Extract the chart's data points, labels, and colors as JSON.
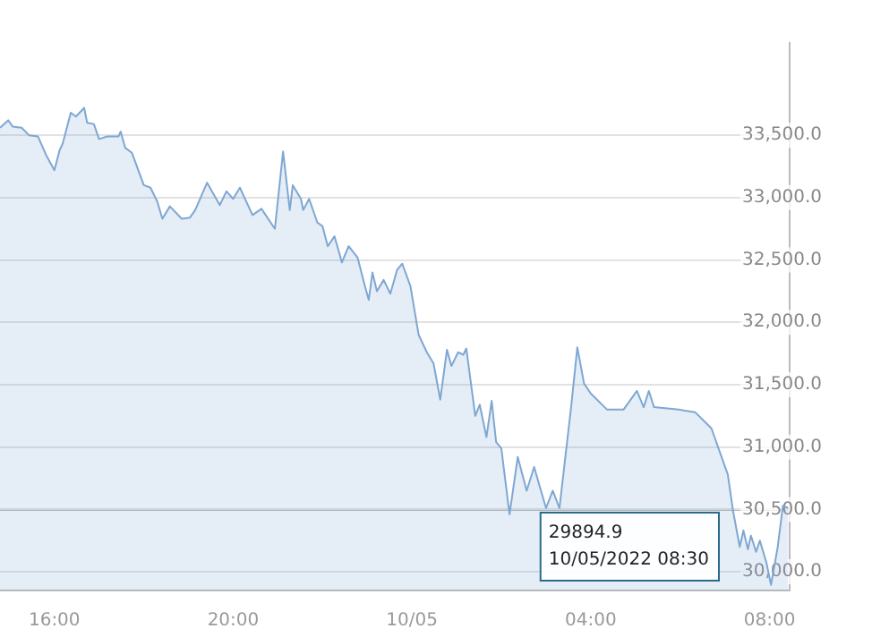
{
  "chart_data": {
    "type": "area",
    "x": [
      "2022-10-04T14:47",
      "2022-10-04T14:58",
      "2022-10-04T15:04",
      "2022-10-04T15:16",
      "2022-10-04T15:26",
      "2022-10-04T15:38",
      "2022-10-04T15:49",
      "2022-10-04T16:00",
      "2022-10-04T16:07",
      "2022-10-04T16:11",
      "2022-10-04T16:22",
      "2022-10-04T16:29",
      "2022-10-04T16:40",
      "2022-10-04T16:44",
      "2022-10-04T16:53",
      "2022-10-04T17:00",
      "2022-10-04T17:11",
      "2022-10-04T17:26",
      "2022-10-04T17:29",
      "2022-10-04T17:35",
      "2022-10-04T17:44",
      "2022-10-04T18:00",
      "2022-10-04T18:09",
      "2022-10-04T18:18",
      "2022-10-04T18:25",
      "2022-10-04T18:35",
      "2022-10-04T18:51",
      "2022-10-04T19:02",
      "2022-10-04T19:09",
      "2022-10-04T19:25",
      "2022-10-04T19:42",
      "2022-10-04T19:51",
      "2022-10-04T20:00",
      "2022-10-04T20:09",
      "2022-10-04T20:26",
      "2022-10-04T20:38",
      "2022-10-04T20:56",
      "2022-10-04T21:07",
      "2022-10-04T21:16",
      "2022-10-04T21:20",
      "2022-10-04T21:31",
      "2022-10-04T21:34",
      "2022-10-04T21:42",
      "2022-10-04T21:53",
      "2022-10-04T22:00",
      "2022-10-04T22:07",
      "2022-10-04T22:16",
      "2022-10-04T22:26",
      "2022-10-04T22:35",
      "2022-10-04T22:47",
      "2022-10-04T22:56",
      "2022-10-04T23:02",
      "2022-10-04T23:07",
      "2022-10-04T23:13",
      "2022-10-04T23:22",
      "2022-10-04T23:31",
      "2022-10-04T23:40",
      "2022-10-04T23:47",
      "2022-10-04T23:58",
      "2022-10-05T00:09",
      "2022-10-05T00:20",
      "2022-10-05T00:29",
      "2022-10-05T00:38",
      "2022-10-05T00:47",
      "2022-10-05T00:53",
      "2022-10-05T01:02",
      "2022-10-05T01:09",
      "2022-10-05T01:13",
      "2022-10-05T01:25",
      "2022-10-05T01:31",
      "2022-10-05T01:40",
      "2022-10-05T01:47",
      "2022-10-05T01:53",
      "2022-10-05T02:00",
      "2022-10-05T02:11",
      "2022-10-05T02:22",
      "2022-10-05T02:34",
      "2022-10-05T02:44",
      "2022-10-05T03:00",
      "2022-10-05T03:09",
      "2022-10-05T03:18",
      "2022-10-05T03:34",
      "2022-10-05T03:42",
      "2022-10-05T03:51",
      "2022-10-05T04:00",
      "2022-10-05T04:22",
      "2022-10-05T04:44",
      "2022-10-05T05:02",
      "2022-10-05T05:11",
      "2022-10-05T05:18",
      "2022-10-05T05:25",
      "2022-10-05T05:58",
      "2022-10-05T06:20",
      "2022-10-05T06:42",
      "2022-10-05T07:04",
      "2022-10-05T07:11",
      "2022-10-05T07:20",
      "2022-10-05T07:25",
      "2022-10-05T07:31",
      "2022-10-05T07:35",
      "2022-10-05T07:42",
      "2022-10-05T07:47",
      "2022-10-05T07:56",
      "2022-10-05T08:02",
      "2022-10-05T08:11",
      "2022-10-05T08:18",
      "2022-10-05T08:25"
    ],
    "series": [
      {
        "color": "#7fa7d3",
        "values": [
          33560,
          33620,
          33570,
          33560,
          33500,
          33490,
          33340,
          33220,
          33380,
          33430,
          33680,
          33650,
          33720,
          33600,
          33590,
          33470,
          33490,
          33490,
          33530,
          33400,
          33360,
          33100,
          33080,
          32970,
          32830,
          32930,
          32830,
          32840,
          32900,
          33120,
          32940,
          33050,
          32990,
          33080,
          32860,
          32910,
          32750,
          33370,
          32900,
          33100,
          32990,
          32900,
          32990,
          32800,
          32770,
          32610,
          32690,
          32480,
          32610,
          32520,
          32310,
          32180,
          32400,
          32250,
          32340,
          32230,
          32420,
          32470,
          32290,
          31900,
          31760,
          31670,
          31380,
          31780,
          31650,
          31760,
          31740,
          31790,
          31250,
          31340,
          31080,
          31370,
          31040,
          30990,
          30460,
          30920,
          30650,
          30840,
          30510,
          30650,
          30510,
          31340,
          31800,
          31510,
          31430,
          31300,
          31300,
          31450,
          31320,
          31450,
          31320,
          31300,
          31280,
          31150,
          30780,
          30490,
          30200,
          30330,
          30180,
          30290,
          30160,
          30250,
          30070,
          29894.9,
          30200,
          30530,
          30510
        ]
      }
    ],
    "xlim": [
      "2022-10-04T14:47",
      "2022-10-05T08:27"
    ],
    "xticks": [
      {
        "value": "2022-10-04T16:00",
        "label": "16:00"
      },
      {
        "value": "2022-10-04T20:00",
        "label": "20:00"
      },
      {
        "value": "2022-10-05T00:00",
        "label": "10/05"
      },
      {
        "value": "2022-10-05T04:00",
        "label": "04:00"
      },
      {
        "value": "2022-10-05T08:00",
        "label": "08:00"
      }
    ],
    "ylim": [
      29850,
      34240
    ],
    "yticks": [
      {
        "value": 30000,
        "label": "30,000.0"
      },
      {
        "value": 30500,
        "label": "30,500.0"
      },
      {
        "value": 31000,
        "label": "31,000.0"
      },
      {
        "value": 31500,
        "label": "31,500.0"
      },
      {
        "value": 32000,
        "label": "32,000.0"
      },
      {
        "value": 32500,
        "label": "32,500.0"
      },
      {
        "value": 33000,
        "label": "33,000.0"
      },
      {
        "value": 33500,
        "label": "33,500.0"
      }
    ],
    "ref_lines": [
      {
        "axis": "y",
        "value": 30500,
        "color": "#b4b4b4"
      }
    ],
    "annotations": [
      "29894.9",
      "10/05/2022 08:30"
    ],
    "grid": "y",
    "legend": false,
    "marker": "none",
    "line_style": "solid"
  }
}
